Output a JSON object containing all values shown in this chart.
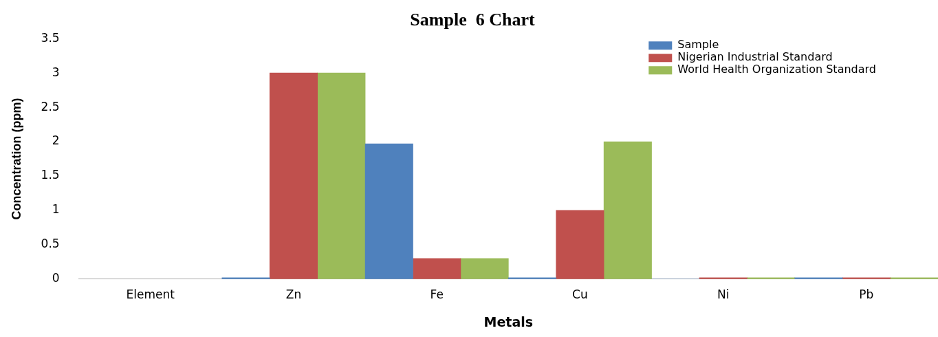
{
  "chart_data": {
    "type": "bar",
    "title": "Sample  6 Chart",
    "xlabel": "Metals",
    "ylabel": "Concentration (ppm)",
    "categories": [
      "Element",
      "Zn",
      "Fe",
      "Cu",
      "Ni",
      "Pb"
    ],
    "series": [
      {
        "name": "Sample",
        "color": "#4f81bd",
        "values": [
          null,
          0.02,
          1.97,
          0.02,
          0,
          0.02
        ]
      },
      {
        "name": "Nigerian Industrial Standard",
        "color": "#c0504d",
        "values": [
          null,
          3,
          0.3,
          1,
          0.02,
          0.02
        ]
      },
      {
        "name": "World Health Organization Standard",
        "color": "#9bbb59",
        "values": [
          null,
          3,
          0.3,
          2,
          0.02,
          0.02
        ]
      }
    ],
    "ylim": [
      0,
      3.5
    ],
    "yticks": [
      0,
      0.5,
      1,
      1.5,
      2,
      2.5,
      3,
      3.5
    ],
    "grid": false,
    "legend": "top right"
  }
}
